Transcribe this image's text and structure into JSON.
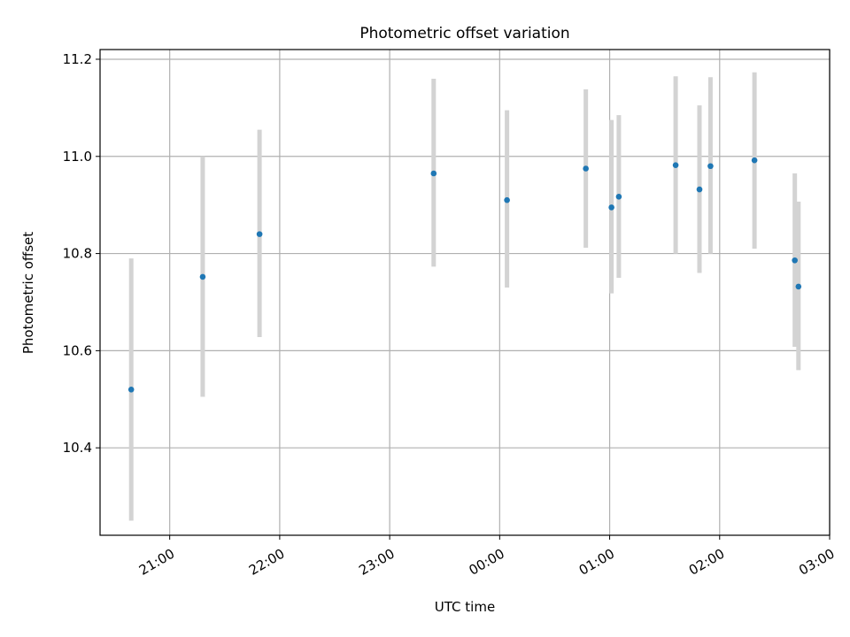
{
  "chart_data": {
    "type": "scatter",
    "title": "Photometric offset variation",
    "xlabel": "UTC time",
    "ylabel": "Photometric offset",
    "x_is_time": true,
    "xlim": [
      "20:22",
      "03:00"
    ],
    "ylim": [
      10.22,
      11.22
    ],
    "x_ticks": [
      "21:00",
      "22:00",
      "23:00",
      "00:00",
      "01:00",
      "02:00",
      "03:00"
    ],
    "y_ticks": [
      "10.4",
      "10.6",
      "10.8",
      "11.0",
      "11.2"
    ],
    "grid": true,
    "legend": "none",
    "series": [
      {
        "x": [
          "20:39",
          "21:18",
          "21:49",
          "23:24",
          "00:04",
          "00:47",
          "01:01",
          "01:05",
          "01:36",
          "01:49",
          "01:55",
          "02:19",
          "02:41",
          "02:43"
        ],
        "y": [
          10.52,
          10.752,
          10.84,
          10.965,
          10.91,
          10.975,
          10.895,
          10.917,
          10.982,
          10.932,
          10.98,
          10.992,
          10.786,
          10.732
        ],
        "err_low": [
          10.25,
          10.505,
          10.628,
          10.773,
          10.73,
          10.812,
          10.718,
          10.75,
          10.8,
          10.76,
          10.8,
          10.81,
          10.608,
          10.56
        ],
        "err_high": [
          10.79,
          11.0,
          11.055,
          11.16,
          11.095,
          11.138,
          11.075,
          11.085,
          11.165,
          11.105,
          11.163,
          11.173,
          10.965,
          10.907
        ]
      }
    ],
    "colors": {
      "point": "#1f77b4",
      "errorbar": "#d3d3d3",
      "grid": "#b0b0b0"
    }
  }
}
